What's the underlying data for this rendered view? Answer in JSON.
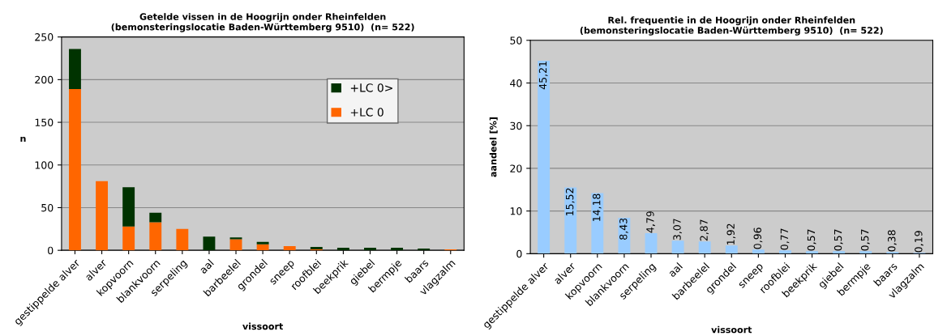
{
  "chart_data": [
    {
      "type": "bar",
      "title": "Getelde vissen in de Hoogrijn onder Rheinfelden\n(bemonsteringslocatie Baden-Württemberg 9510)  (n= 522)",
      "xlabel": "vissoort",
      "ylabel": "n",
      "categories": [
        "gestippelde alver",
        "alver",
        "kopvoorn",
        "blankvoorn",
        "serpeling",
        "aal",
        "barbeelel",
        "grondel",
        "sneep",
        "roofblei",
        "beekprik",
        "giebel",
        "bermpje",
        "baars",
        "vlagzalm"
      ],
      "stacked": true,
      "ylim": [
        0,
        250
      ],
      "yticks": [
        0,
        50,
        100,
        150,
        200,
        250
      ],
      "grid": "y",
      "legend": "right",
      "series": [
        {
          "name": "+LC 0",
          "color": "#ff6600",
          "values": [
            189,
            81,
            28,
            33,
            25,
            0,
            13,
            7,
            5,
            1,
            0,
            0,
            0,
            0,
            1
          ]
        },
        {
          "name": "+LC 0>",
          "color": "#003300",
          "values": [
            47,
            0,
            46,
            11,
            0,
            16,
            2,
            3,
            0,
            3,
            3,
            3,
            3,
            2,
            0
          ]
        }
      ]
    },
    {
      "type": "bar",
      "title": "Rel. frequentie in de Hoogrijn onder Rheinfelden\n(bemonsteringslocatie Baden-Württemberg 9510)  (n= 522)",
      "xlabel": "vissoort",
      "ylabel": "aandeel [%]",
      "categories": [
        "gestippelde alver",
        "alver",
        "kopvoorn",
        "blankvoorn",
        "serpeling",
        "aal",
        "barbeelel",
        "grondel",
        "sneep",
        "roofblei",
        "beekprik",
        "giebel",
        "bermpje",
        "baars",
        "vlagzalm"
      ],
      "ylim": [
        0,
        50
      ],
      "yticks": [
        0,
        10,
        20,
        30,
        40,
        50
      ],
      "grid": "y",
      "color": "#99ccff",
      "values": [
        45.21,
        15.52,
        14.18,
        8.43,
        4.79,
        3.07,
        2.87,
        1.92,
        0.96,
        0.77,
        0.57,
        0.57,
        0.57,
        0.38,
        0.19
      ],
      "value_labels": [
        "45,21",
        "15,52",
        "14,18",
        "8,43",
        "4,79",
        "3,07",
        "2,87",
        "1,92",
        "0,96",
        "0,77",
        "0,57",
        "0,57",
        "0,57",
        "0,38",
        "0,19"
      ]
    }
  ]
}
